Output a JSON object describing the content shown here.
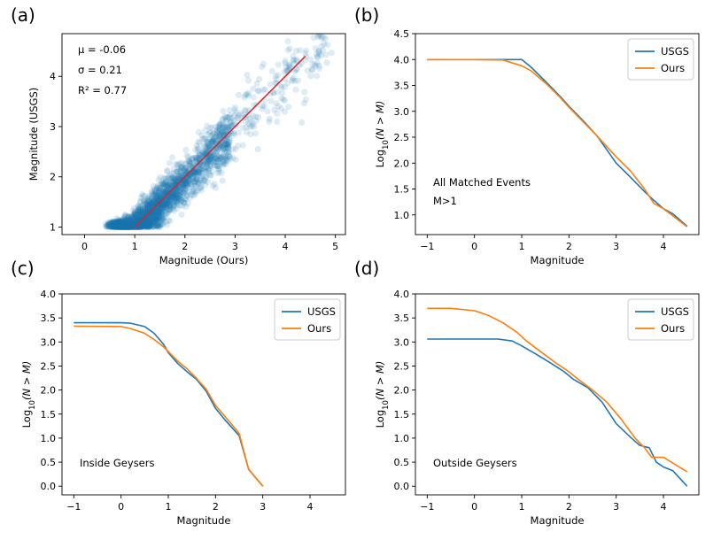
{
  "colors": {
    "usgs": "#1f77b4",
    "ours": "#ff7f0e",
    "fit": "#d62728",
    "scatter": "#1f77b4"
  },
  "chart_data": [
    {
      "panel": "(a)",
      "type": "scatter",
      "xlabel": "Magnitude (Ours)",
      "ylabel": "Magnitude (USGS)",
      "xlim": [
        -0.45,
        5.2
      ],
      "ylim": [
        0.85,
        4.85
      ],
      "xticks": [
        0,
        1,
        2,
        3,
        4,
        5
      ],
      "yticks": [
        1,
        2,
        3,
        4
      ],
      "annotations": [
        "μ = -0.06",
        "σ = 0.21",
        "R² = 0.77"
      ],
      "fit_line": {
        "x": [
          1.0,
          4.4
        ],
        "y": [
          1.0,
          4.4
        ]
      },
      "points_description": "dense cloud of ~10000 matched events, magnitudes 0 to 5"
    },
    {
      "panel": "(b)",
      "type": "line",
      "xlabel": "Magnitude",
      "ylabel": "Log₁₀(N > M)",
      "xlim": [
        -1.25,
        4.75
      ],
      "ylim": [
        0.62,
        4.5
      ],
      "xticks": [
        -1,
        0,
        1,
        2,
        3,
        4
      ],
      "yticks": [
        1.0,
        1.5,
        2.0,
        2.5,
        3.0,
        3.5,
        4.0,
        4.5
      ],
      "annotations": [
        "All Matched Events",
        "M>1"
      ],
      "legend": [
        "USGS",
        "Ours"
      ],
      "series": [
        {
          "name": "USGS",
          "x": [
            -1,
            0,
            0.5,
            1.0,
            1.2,
            1.5,
            1.8,
            2.0,
            2.3,
            2.6,
            3.0,
            3.3,
            3.6,
            3.8,
            4.0,
            4.2,
            4.5
          ],
          "y": [
            4.0,
            4.0,
            4.0,
            4.0,
            3.85,
            3.58,
            3.3,
            3.1,
            2.82,
            2.52,
            2.0,
            1.73,
            1.45,
            1.28,
            1.12,
            1.02,
            0.78
          ]
        },
        {
          "name": "Ours",
          "x": [
            -1,
            0,
            0.6,
            1.0,
            1.2,
            1.5,
            1.8,
            2.0,
            2.3,
            2.6,
            3.0,
            3.3,
            3.6,
            3.8,
            4.0,
            4.2,
            4.5
          ],
          "y": [
            4.0,
            4.0,
            3.99,
            3.88,
            3.78,
            3.55,
            3.28,
            3.08,
            2.8,
            2.52,
            2.12,
            1.85,
            1.5,
            1.22,
            1.12,
            0.98,
            0.77
          ]
        }
      ]
    },
    {
      "panel": "(c)",
      "type": "line",
      "xlabel": "Magnitude",
      "ylabel": "Log₁₀(N > M)",
      "xlim": [
        -1.25,
        4.75
      ],
      "ylim": [
        -0.18,
        4.0
      ],
      "xticks": [
        -1,
        0,
        1,
        2,
        3,
        4
      ],
      "yticks": [
        0.0,
        0.5,
        1.0,
        1.5,
        2.0,
        2.5,
        3.0,
        3.5,
        4.0
      ],
      "annotations": [
        "Inside Geysers"
      ],
      "legend": [
        "USGS",
        "Ours"
      ],
      "series": [
        {
          "name": "USGS",
          "x": [
            -1,
            0,
            0.2,
            0.5,
            0.7,
            0.9,
            1.0,
            1.2,
            1.4,
            1.6,
            1.8,
            2.0,
            2.2,
            2.5,
            2.7,
            3.0
          ],
          "y": [
            3.4,
            3.4,
            3.39,
            3.32,
            3.18,
            2.95,
            2.78,
            2.55,
            2.38,
            2.22,
            1.98,
            1.62,
            1.38,
            1.05,
            0.35,
            0.0
          ]
        },
        {
          "name": "Ours",
          "x": [
            -1,
            0,
            0.2,
            0.5,
            0.7,
            0.9,
            1.0,
            1.2,
            1.4,
            1.6,
            1.8,
            2.0,
            2.2,
            2.5,
            2.7,
            3.0
          ],
          "y": [
            3.33,
            3.32,
            3.28,
            3.18,
            3.05,
            2.9,
            2.8,
            2.6,
            2.44,
            2.24,
            2.02,
            1.68,
            1.45,
            1.1,
            0.35,
            0.0
          ]
        }
      ]
    },
    {
      "panel": "(d)",
      "type": "line",
      "xlabel": "Magnitude",
      "ylabel": "Log₁₀(N > M)",
      "xlim": [
        -1.25,
        4.75
      ],
      "ylim": [
        -0.18,
        4.0
      ],
      "xticks": [
        -1,
        0,
        1,
        2,
        3,
        4
      ],
      "yticks": [
        0.0,
        0.5,
        1.0,
        1.5,
        2.0,
        2.5,
        3.0,
        3.5,
        4.0
      ],
      "annotations": [
        "Outside Geysers"
      ],
      "legend": [
        "USGS",
        "Ours"
      ],
      "series": [
        {
          "name": "USGS",
          "x": [
            -1,
            0,
            0.5,
            0.8,
            1.0,
            1.3,
            1.6,
            1.9,
            2.1,
            2.4,
            2.7,
            3.0,
            3.3,
            3.5,
            3.7,
            3.85,
            4.0,
            4.2,
            4.5
          ],
          "y": [
            3.06,
            3.06,
            3.06,
            3.02,
            2.92,
            2.75,
            2.57,
            2.38,
            2.22,
            2.05,
            1.75,
            1.3,
            1.02,
            0.85,
            0.8,
            0.5,
            0.4,
            0.32,
            0.0
          ]
        },
        {
          "name": "Ours",
          "x": [
            -1,
            -0.5,
            0,
            0.3,
            0.6,
            0.9,
            1.1,
            1.4,
            1.7,
            2.0,
            2.2,
            2.5,
            2.8,
            3.1,
            3.4,
            3.6,
            3.75,
            4.0,
            4.2,
            4.5
          ],
          "y": [
            3.7,
            3.7,
            3.65,
            3.55,
            3.4,
            3.2,
            3.02,
            2.8,
            2.58,
            2.38,
            2.22,
            2.0,
            1.75,
            1.4,
            1.0,
            0.8,
            0.6,
            0.6,
            0.48,
            0.3
          ]
        }
      ]
    }
  ]
}
